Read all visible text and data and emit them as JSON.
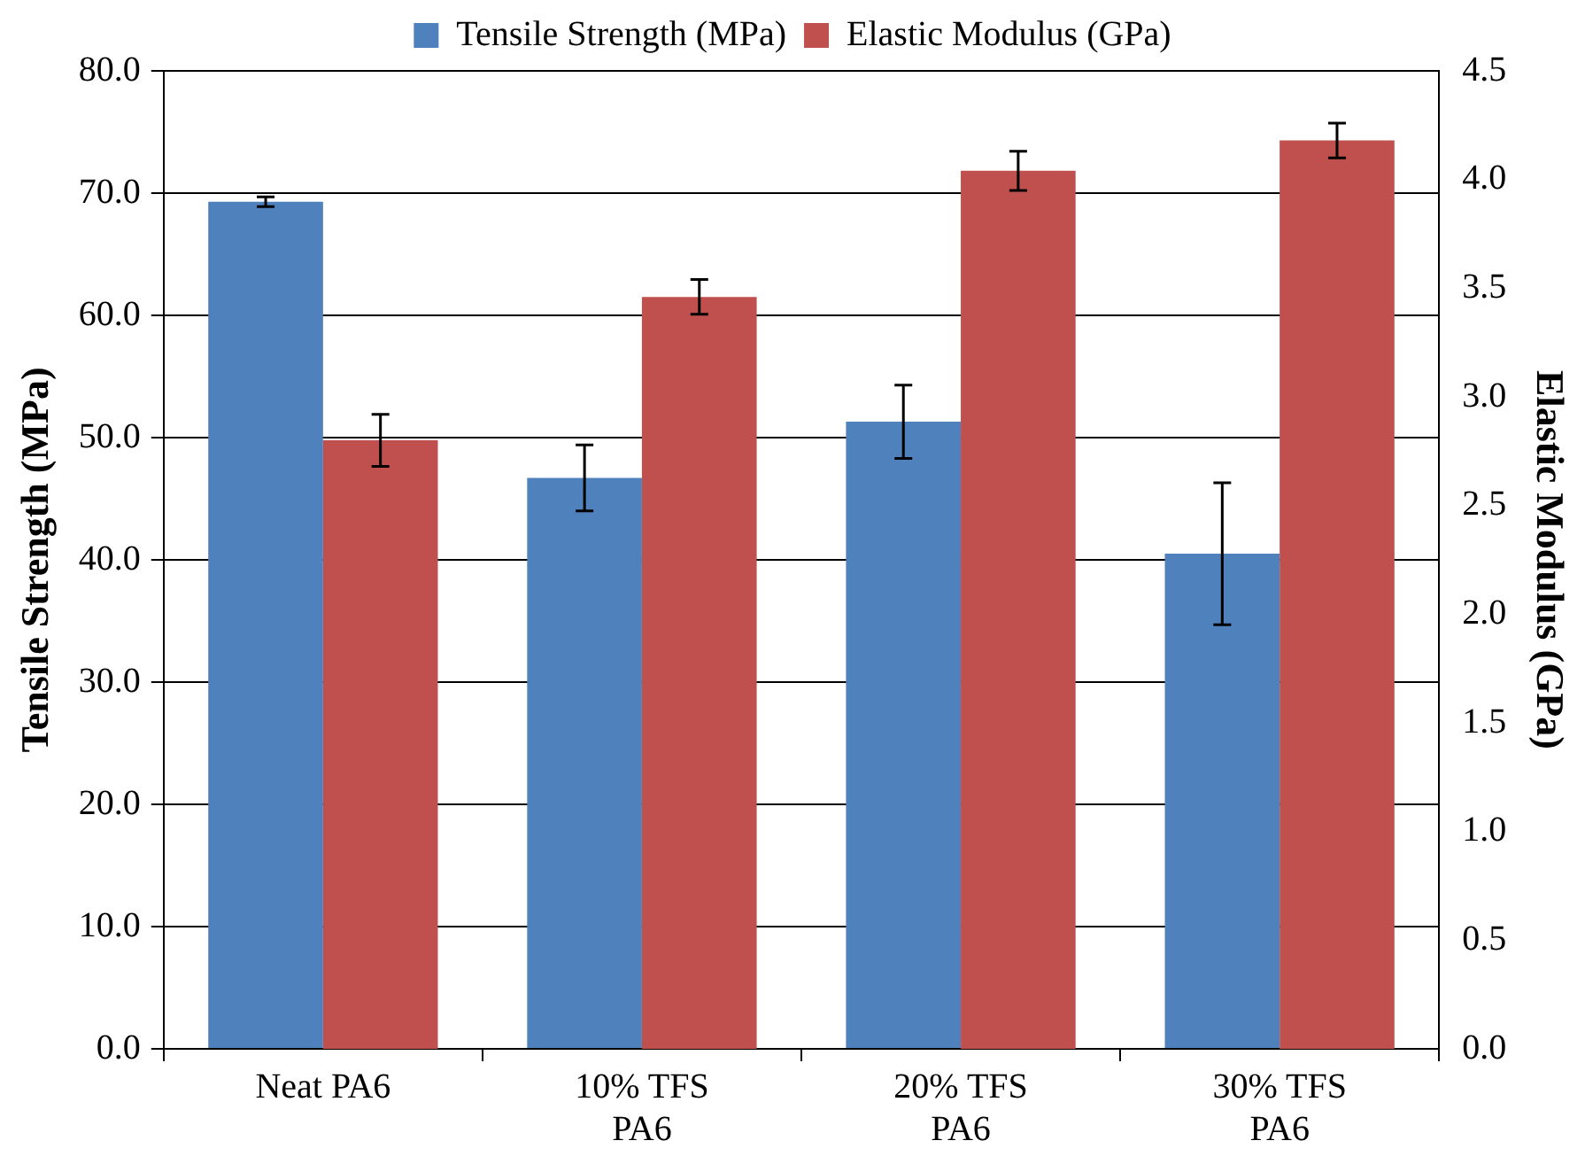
{
  "chart_data": {
    "type": "bar",
    "categories": [
      "Neat PA6",
      "10% TFS PA6",
      "20% TFS PA6",
      "30% TFS PA6"
    ],
    "ylabel": "Tensile Strength (MPa)",
    "y2label": "Elastic Modulus (GPa)",
    "series": [
      {
        "name": "Tensile Strength (MPa)",
        "color": "#4f81bd",
        "values": [
          69.3,
          46.7,
          51.3,
          40.5
        ],
        "errors": [
          0.4,
          2.7,
          3.0,
          5.8
        ]
      },
      {
        "name": "Elastic Modulus (GPa)",
        "color": "#c0504d",
        "axis": "y2",
        "values": [
          2.8,
          3.46,
          4.04,
          4.18
        ],
        "errors": [
          0.12,
          0.08,
          0.09,
          0.08
        ]
      }
    ],
    "ylim": [
      0,
      80
    ],
    "yticks": [
      {
        "value": 0,
        "label": "0.0"
      },
      {
        "value": 10,
        "label": "10.0"
      },
      {
        "value": 20,
        "label": "20.0"
      },
      {
        "value": 30,
        "label": "30.0"
      },
      {
        "value": 40,
        "label": "40.0"
      },
      {
        "value": 50,
        "label": "50.0"
      },
      {
        "value": 60,
        "label": "60.0"
      },
      {
        "value": 70,
        "label": "70.0"
      },
      {
        "value": 80,
        "label": "80.0"
      }
    ],
    "y2lim": [
      0,
      4.5
    ],
    "y2ticks": [
      {
        "value": 0,
        "label": "0.0"
      },
      {
        "value": 0.5,
        "label": "0.5"
      },
      {
        "value": 1,
        "label": "1.0"
      },
      {
        "value": 1.5,
        "label": "1.5"
      },
      {
        "value": 2,
        "label": "2.0"
      },
      {
        "value": 2.5,
        "label": "2.5"
      },
      {
        "value": 3,
        "label": "3.0"
      },
      {
        "value": 3.5,
        "label": "3.5"
      },
      {
        "value": 4,
        "label": "4.0"
      },
      {
        "value": 4.5,
        "label": "4.5"
      }
    ],
    "grid": "y",
    "legend": "top"
  }
}
